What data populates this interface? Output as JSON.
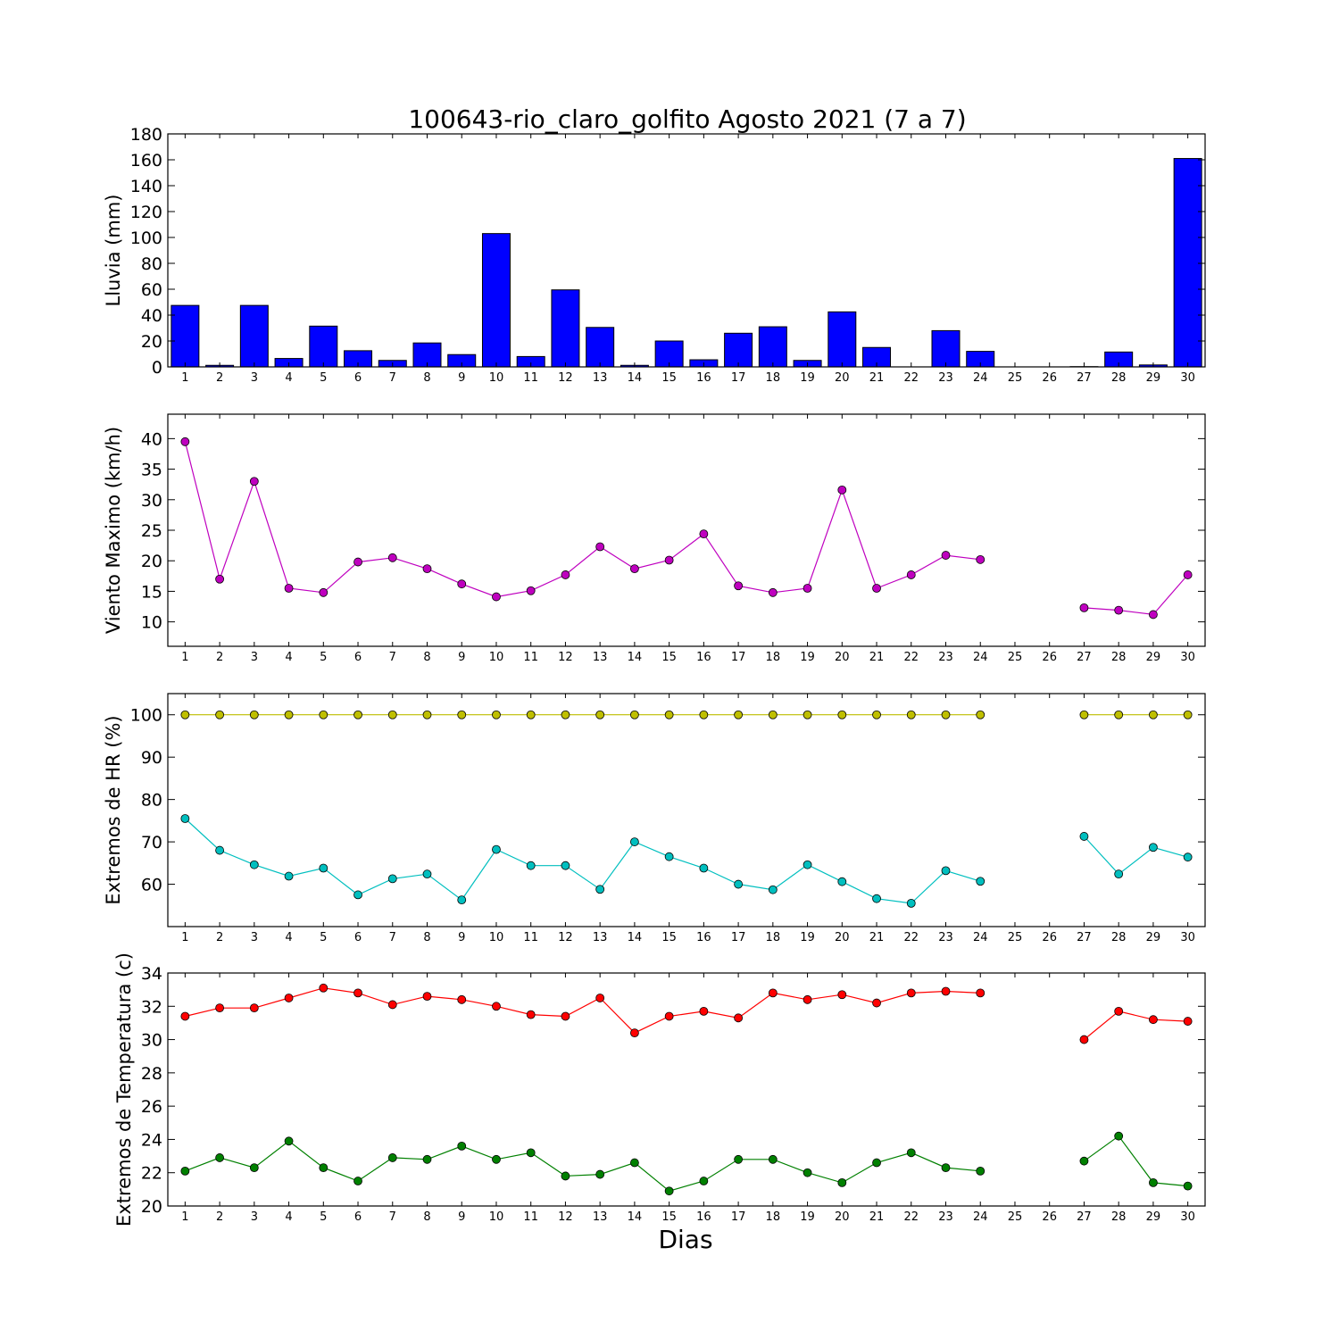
{
  "title": "100643-rio_claro_golfito Agosto 2021  (7 a 7)",
  "xlabel": "Dias",
  "chart_data": [
    {
      "type": "bar",
      "ylabel": "Lluvia (mm)",
      "ylim": [
        0,
        180
      ],
      "yticks": [
        0,
        20,
        40,
        60,
        80,
        100,
        120,
        140,
        160,
        180
      ],
      "xlim": [
        0.5,
        30.5
      ],
      "xticks": [
        1,
        2,
        3,
        4,
        5,
        6,
        7,
        8,
        9,
        10,
        11,
        12,
        13,
        14,
        15,
        16,
        17,
        18,
        19,
        20,
        21,
        22,
        23,
        24,
        25,
        26,
        27,
        28,
        29,
        30
      ],
      "series": [
        {
          "color": "#0000ff",
          "values": [
            47.5,
            1.2,
            47.5,
            6.5,
            31.5,
            12.5,
            5.0,
            18.5,
            9.5,
            103.0,
            8.0,
            59.5,
            30.5,
            1.2,
            20.0,
            5.5,
            26.0,
            31.0,
            5.0,
            42.5,
            15.0,
            0,
            28.0,
            12.0,
            0,
            0,
            0.2,
            11.5,
            1.5,
            161.0
          ]
        }
      ]
    },
    {
      "type": "line",
      "ylabel": "Viento Maximo (km/h)",
      "ylim": [
        6,
        44
      ],
      "yticks": [
        10,
        15,
        20,
        25,
        30,
        35,
        40
      ],
      "xlim": [
        0.5,
        30.5
      ],
      "xticks": [
        1,
        2,
        3,
        4,
        5,
        6,
        7,
        8,
        9,
        10,
        11,
        12,
        13,
        14,
        15,
        16,
        17,
        18,
        19,
        20,
        21,
        22,
        23,
        24,
        25,
        26,
        27,
        28,
        29,
        30
      ],
      "series": [
        {
          "color": "#bf00bf",
          "values": [
            39.5,
            17.0,
            33.0,
            15.5,
            14.8,
            19.8,
            20.5,
            18.7,
            16.2,
            14.1,
            15.1,
            17.7,
            22.3,
            18.7,
            20.1,
            24.4,
            15.9,
            14.8,
            15.5,
            31.6,
            15.5,
            17.7,
            20.9,
            20.2,
            null,
            null,
            12.3,
            11.9,
            11.2,
            17.7
          ]
        }
      ]
    },
    {
      "type": "line",
      "ylabel": "Extremos de HR (%)",
      "ylim": [
        50,
        105
      ],
      "yticks": [
        60,
        70,
        80,
        90,
        100
      ],
      "xlim": [
        0.5,
        30.5
      ],
      "xticks": [
        1,
        2,
        3,
        4,
        5,
        6,
        7,
        8,
        9,
        10,
        11,
        12,
        13,
        14,
        15,
        16,
        17,
        18,
        19,
        20,
        21,
        22,
        23,
        24,
        25,
        26,
        27,
        28,
        29,
        30
      ],
      "series": [
        {
          "color": "#bfbf00",
          "values": [
            100,
            100,
            100,
            100,
            100,
            100,
            100,
            100,
            100,
            100,
            100,
            100,
            100,
            100,
            100,
            100,
            100,
            100,
            100,
            100,
            100,
            100,
            100,
            100,
            null,
            null,
            100,
            100,
            100,
            100
          ]
        },
        {
          "color": "#00bfbf",
          "values": [
            75.5,
            68.0,
            64.6,
            61.9,
            63.8,
            57.5,
            61.3,
            62.4,
            56.3,
            68.2,
            64.4,
            64.4,
            58.8,
            70.0,
            66.5,
            63.8,
            60.0,
            58.7,
            64.6,
            60.6,
            56.6,
            55.5,
            63.2,
            60.7,
            null,
            null,
            71.3,
            62.4,
            68.7,
            66.4
          ]
        }
      ]
    },
    {
      "type": "line",
      "ylabel": "Extremos de Temperatura (c)",
      "ylim": [
        20,
        34
      ],
      "yticks": [
        20,
        22,
        24,
        26,
        28,
        30,
        32,
        34
      ],
      "xlim": [
        0.5,
        30.5
      ],
      "xticks": [
        1,
        2,
        3,
        4,
        5,
        6,
        7,
        8,
        9,
        10,
        11,
        12,
        13,
        14,
        15,
        16,
        17,
        18,
        19,
        20,
        21,
        22,
        23,
        24,
        25,
        26,
        27,
        28,
        29,
        30
      ],
      "series": [
        {
          "color": "#ff0000",
          "values": [
            31.4,
            31.9,
            31.9,
            32.5,
            33.1,
            32.8,
            32.1,
            32.6,
            32.4,
            32.0,
            31.5,
            31.4,
            32.5,
            30.4,
            31.4,
            31.7,
            31.3,
            32.8,
            32.4,
            32.7,
            32.2,
            32.8,
            32.9,
            32.8,
            null,
            null,
            30.0,
            31.7,
            31.2,
            31.1
          ]
        },
        {
          "color": "#008000",
          "values": [
            22.1,
            22.9,
            22.3,
            23.9,
            22.3,
            21.5,
            22.9,
            22.8,
            23.6,
            22.8,
            23.2,
            21.8,
            21.9,
            22.6,
            20.9,
            21.5,
            22.8,
            22.8,
            22.0,
            21.4,
            22.6,
            23.2,
            22.3,
            22.1,
            null,
            null,
            22.7,
            24.2,
            21.4,
            21.2
          ]
        }
      ]
    }
  ]
}
